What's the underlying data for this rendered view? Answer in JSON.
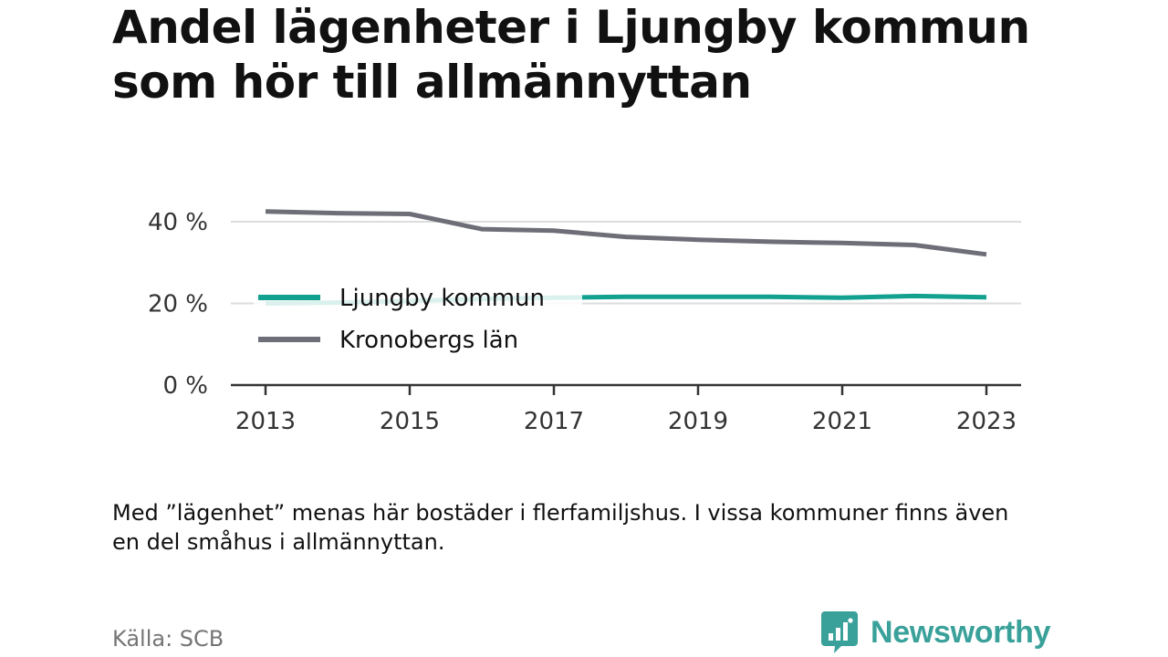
{
  "title": "Andel lägenheter i Ljungby kommun som hör till allmännyttan",
  "note": "Med ”lägenhet” menas här bostäder i flerfamiljshus. I vissa kommuner finns även en del småhus i allmännyttan.",
  "source": "Källa: SCB",
  "brand": {
    "name": "Newsworthy",
    "logo_icon": "newsworthy-chart-bubble-icon",
    "color": "#3aa19a"
  },
  "chart_data": {
    "type": "line",
    "x": [
      2013,
      2014,
      2015,
      2016,
      2017,
      2018,
      2019,
      2020,
      2021,
      2022,
      2023
    ],
    "x_ticks": [
      "2013",
      "2015",
      "2017",
      "2019",
      "2021",
      "2023"
    ],
    "y_ticks": [
      "0 %",
      "20 %",
      "40 %"
    ],
    "y_tick_values": [
      0,
      20,
      40
    ],
    "ylim": [
      0,
      40
    ],
    "grid": true,
    "legend_position": "center-left",
    "series": [
      {
        "name": "Ljungby kommun",
        "color": "#12a08f",
        "values": [
          20.0,
          20.2,
          20.6,
          21.1,
          21.4,
          21.6,
          21.6,
          21.6,
          21.4,
          21.8,
          21.5
        ]
      },
      {
        "name": "Kronobergs län",
        "color": "#6e6e78",
        "values": [
          42.5,
          42.1,
          41.9,
          38.2,
          37.8,
          36.3,
          35.6,
          35.1,
          34.8,
          34.3,
          32.0
        ]
      }
    ]
  }
}
